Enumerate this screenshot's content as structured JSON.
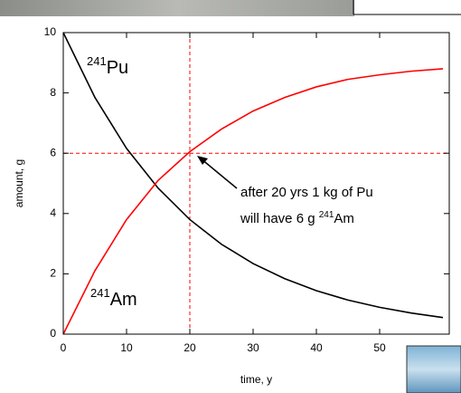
{
  "chart_data": {
    "type": "line",
    "x_label": "time, y",
    "y_label": "amount, g",
    "xlim": [
      0,
      61
    ],
    "ylim": [
      0,
      10
    ],
    "xticks": [
      0,
      10,
      20,
      30,
      40,
      50
    ],
    "yticks": [
      0,
      2,
      4,
      6,
      8,
      10
    ],
    "x": [
      0,
      5,
      10,
      15,
      20,
      25,
      30,
      35,
      40,
      45,
      50,
      55,
      60
    ],
    "series": [
      {
        "name": "Pu",
        "mass_number": "241",
        "color": "#000000",
        "values": [
          10,
          7.85,
          6.16,
          4.84,
          3.8,
          2.98,
          2.34,
          1.84,
          1.44,
          1.13,
          0.89,
          0.7,
          0.55
        ]
      },
      {
        "name": "Am",
        "mass_number": "241",
        "color": "#ff0000",
        "values": [
          0,
          2.1,
          3.8,
          5.1,
          6.05,
          6.8,
          7.4,
          7.85,
          8.2,
          8.45,
          8.6,
          8.72,
          8.8
        ]
      }
    ],
    "reference_lines": {
      "x": 20,
      "y": 6,
      "color": "#ff0000"
    },
    "annotation": {
      "line1": "after 20 yrs 1 kg of Pu",
      "line2": "will have 6 g ",
      "mass_number": "241",
      "element": "Am"
    }
  }
}
